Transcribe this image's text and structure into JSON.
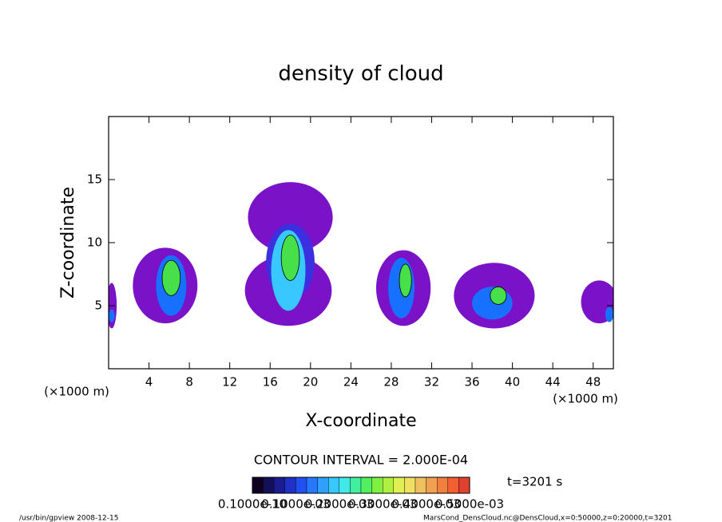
{
  "chart_data": {
    "type": "contour",
    "title": "density of cloud",
    "xlabel": "X-coordinate",
    "ylabel": "Z-coordinate",
    "xunit": "(×1000 m)",
    "yunit": "(×1000 m)",
    "xlim": [
      0,
      50
    ],
    "ylim": [
      0,
      20
    ],
    "xticks": [
      4,
      8,
      12,
      16,
      20,
      24,
      28,
      32,
      36,
      40,
      44,
      48
    ],
    "yticks": [
      5,
      10,
      15
    ],
    "level_colors": [
      "#7a12c8",
      "#3a30e0",
      "#1870ff",
      "#38c8ff",
      "#48e048"
    ],
    "cells": [
      {
        "x": 5.6,
        "z": 6.6,
        "rx": 3.2,
        "rz": 3.0,
        "level": 0
      },
      {
        "x": 6.2,
        "z": 6.6,
        "rx": 1.5,
        "rz": 2.4,
        "level": 2
      },
      {
        "x": 6.2,
        "z": 7.2,
        "rx": 0.9,
        "rz": 1.4,
        "level": 4
      },
      {
        "x": 18.0,
        "z": 12.0,
        "rx": 4.2,
        "rz": 2.8,
        "level": 0
      },
      {
        "x": 17.8,
        "z": 6.2,
        "rx": 4.3,
        "rz": 2.8,
        "level": 0
      },
      {
        "x": 18.0,
        "z": 8.5,
        "rx": 2.4,
        "rz": 3.0,
        "level": 1
      },
      {
        "x": 17.8,
        "z": 7.8,
        "rx": 1.7,
        "rz": 3.2,
        "level": 3
      },
      {
        "x": 18.0,
        "z": 8.8,
        "rx": 0.9,
        "rz": 1.8,
        "level": 4
      },
      {
        "x": 29.2,
        "z": 6.4,
        "rx": 2.7,
        "rz": 3.0,
        "level": 0
      },
      {
        "x": 29.0,
        "z": 6.4,
        "rx": 1.3,
        "rz": 2.4,
        "level": 2
      },
      {
        "x": 29.4,
        "z": 7.0,
        "rx": 0.6,
        "rz": 1.3,
        "level": 4
      },
      {
        "x": 38.2,
        "z": 5.8,
        "rx": 4.0,
        "rz": 2.6,
        "level": 0
      },
      {
        "x": 38.0,
        "z": 5.2,
        "rx": 2.0,
        "rz": 1.3,
        "level": 2
      },
      {
        "x": 38.6,
        "z": 5.8,
        "rx": 0.8,
        "rz": 0.7,
        "level": 4
      },
      {
        "x": 48.6,
        "z": 5.3,
        "rx": 1.8,
        "rz": 1.7,
        "level": 0
      },
      {
        "x": 49.6,
        "z": 4.3,
        "rx": 0.4,
        "rz": 0.6,
        "level": 2
      },
      {
        "x": 0.3,
        "z": 5.0,
        "rx": 0.5,
        "rz": 1.8,
        "level": 0
      },
      {
        "x": 0.3,
        "z": 4.2,
        "rx": 0.3,
        "rz": 0.5,
        "level": 2
      }
    ],
    "contour_interval": "CONTOUR INTERVAL = 2.000E-04",
    "time": "t=3201 s",
    "colorbar_colors": [
      "#100020",
      "#141058",
      "#1a1c90",
      "#2030c8",
      "#2050f0",
      "#2878ff",
      "#30a0ff",
      "#38c8ff",
      "#40e8e8",
      "#40f0a0",
      "#50f060",
      "#80f040",
      "#b0f040",
      "#e0f050",
      "#f0e060",
      "#f0c060",
      "#f0a050",
      "#f08040",
      "#f06030",
      "#e04030"
    ],
    "colorbar_labels": [
      "0.1000e-10",
      "0.1000e-03",
      "0.2000e-03",
      "0.3000e-03",
      "0.4000e-03",
      "0.5000e-03"
    ],
    "footer_left": "/usr/bin/gpview  2008-12-15",
    "footer_right": "MarsCond_DensCloud.nc@DensCloud,x=0:50000,z=0:20000,t=3201"
  }
}
